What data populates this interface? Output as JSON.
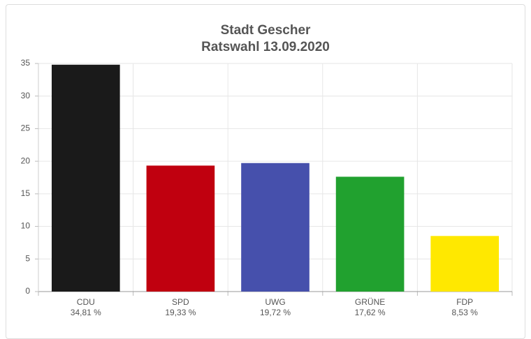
{
  "chart_data": {
    "type": "bar",
    "title": "Stadt Gescher",
    "subtitle": "Ratswahl 13.09.2020",
    "categories": [
      "CDU",
      "SPD",
      "UWG",
      "GRÜNE",
      "FDP"
    ],
    "values": [
      34.81,
      19.33,
      19.72,
      17.62,
      8.53
    ],
    "value_labels": [
      "34,81 %",
      "19,33 %",
      "19,72 %",
      "17,62 %",
      "8,53 %"
    ],
    "colors": [
      "#1a1a1a",
      "#c0000f",
      "#4650ac",
      "#21a12f",
      "#ffe800"
    ],
    "ylim": [
      0,
      35
    ],
    "yticks": [
      0,
      5,
      10,
      15,
      20,
      25,
      30,
      35
    ],
    "grid": true
  }
}
